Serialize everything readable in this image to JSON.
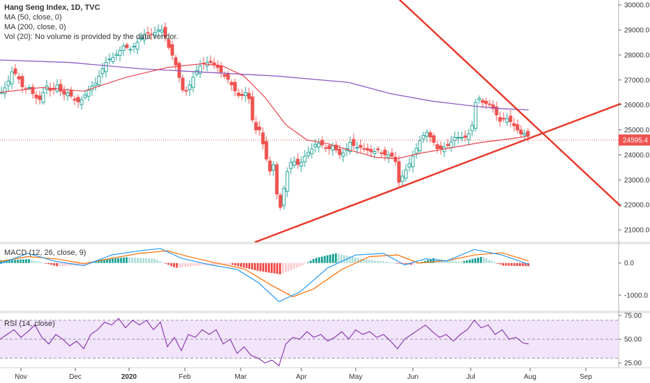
{
  "legend": {
    "title": "Hang Seng Index, 1D, TVC",
    "ma50": "MA (50, close, 0)",
    "ma200": "MA (200, close, 0)",
    "vol": "Vol (20): No volume is provided by the data vendor.",
    "macd": "MACD (12, 26, close, 9)",
    "rsi": "RSI (14, close)"
  },
  "colors": {
    "up": "#26a69a",
    "down": "#ef5350",
    "ma50": "#e8454f",
    "ma200": "#8e5bc4",
    "trendline": "#e8382b",
    "macd_line": "#2196f3",
    "signal_line": "#ff6d00",
    "rsi_line": "#7b1fa2",
    "rsi_band": "#f1e4fb",
    "price_tag": "#ef5350"
  },
  "chart_data": [
    {
      "type": "candlestick",
      "title": "Hang Seng Index, 1D, TVC",
      "ylim": [
        20500,
        30200
      ],
      "y_ticks": [
        "30000.0",
        "29000.0",
        "28000.0",
        "27000.0",
        "26000.0",
        "25000.0",
        "24000.0",
        "23000.0",
        "22000.0",
        "21000.0"
      ],
      "last_price": "24595.4",
      "x_ticks": [
        "Nov",
        "Dec",
        "2020",
        "Feb",
        "Mar",
        "Apr",
        "May",
        "Jun",
        "Jul",
        "Aug",
        "Sep"
      ],
      "close_path": [
        [
          0,
          26500
        ],
        [
          8,
          26800
        ],
        [
          16,
          27400
        ],
        [
          24,
          27100
        ],
        [
          32,
          26600
        ],
        [
          40,
          26700
        ],
        [
          48,
          26300
        ],
        [
          56,
          26200
        ],
        [
          64,
          26800
        ],
        [
          72,
          26500
        ],
        [
          80,
          26800
        ],
        [
          88,
          26400
        ],
        [
          96,
          26500
        ],
        [
          104,
          26200
        ],
        [
          112,
          26100
        ],
        [
          120,
          26400
        ],
        [
          128,
          26700
        ],
        [
          136,
          26900
        ],
        [
          144,
          27400
        ],
        [
          152,
          27800
        ],
        [
          160,
          27900
        ],
        [
          168,
          28100
        ],
        [
          176,
          28400
        ],
        [
          184,
          28200
        ],
        [
          192,
          28400
        ],
        [
          200,
          28700
        ],
        [
          208,
          28900
        ],
        [
          216,
          28800
        ],
        [
          224,
          29000
        ],
        [
          232,
          29000
        ],
        [
          240,
          28300
        ],
        [
          248,
          27800
        ],
        [
          256,
          27000
        ],
        [
          262,
          26400
        ],
        [
          270,
          26800
        ],
        [
          278,
          27300
        ],
        [
          286,
          27600
        ],
        [
          294,
          27700
        ],
        [
          302,
          27700
        ],
        [
          310,
          27500
        ],
        [
          318,
          27200
        ],
        [
          326,
          27000
        ],
        [
          334,
          26600
        ],
        [
          342,
          26300
        ],
        [
          350,
          26500
        ],
        [
          356,
          26200
        ],
        [
          362,
          25000
        ],
        [
          370,
          25000
        ],
        [
          378,
          24100
        ],
        [
          384,
          23300
        ],
        [
          390,
          23600
        ],
        [
          396,
          22200
        ],
        [
          400,
          21900
        ],
        [
          406,
          22800
        ],
        [
          412,
          23600
        ],
        [
          418,
          23800
        ],
        [
          424,
          23600
        ],
        [
          430,
          23700
        ],
        [
          436,
          24000
        ],
        [
          444,
          24200
        ],
        [
          452,
          24500
        ],
        [
          460,
          24400
        ],
        [
          468,
          24200
        ],
        [
          476,
          24400
        ],
        [
          484,
          24000
        ],
        [
          492,
          24100
        ],
        [
          500,
          24500
        ],
        [
          508,
          24300
        ],
        [
          516,
          24300
        ],
        [
          524,
          24200
        ],
        [
          532,
          24100
        ],
        [
          540,
          24200
        ],
        [
          548,
          24000
        ],
        [
          556,
          24000
        ],
        [
          564,
          23900
        ],
        [
          570,
          22900
        ],
        [
          578,
          23300
        ],
        [
          586,
          23700
        ],
        [
          594,
          24200
        ],
        [
          602,
          24700
        ],
        [
          610,
          24900
        ],
        [
          618,
          24600
        ],
        [
          626,
          24200
        ],
        [
          634,
          24300
        ],
        [
          642,
          24400
        ],
        [
          650,
          24700
        ],
        [
          658,
          24700
        ],
        [
          666,
          24700
        ],
        [
          674,
          25000
        ],
        [
          680,
          26100
        ],
        [
          686,
          26300
        ],
        [
          692,
          26000
        ],
        [
          698,
          26100
        ],
        [
          704,
          25900
        ],
        [
          710,
          25600
        ],
        [
          716,
          25300
        ],
        [
          722,
          25500
        ],
        [
          728,
          25400
        ],
        [
          734,
          25200
        ],
        [
          740,
          25000
        ],
        [
          746,
          24800
        ],
        [
          752,
          24900
        ],
        [
          758,
          24595
        ]
      ],
      "series": [
        {
          "name": "MA (50, close, 0)",
          "points": [
            [
              0,
              26500
            ],
            [
              60,
              26700
            ],
            [
              120,
              26550
            ],
            [
              180,
              27100
            ],
            [
              240,
              27500
            ],
            [
              290,
              27650
            ],
            [
              320,
              27550
            ],
            [
              350,
              27150
            ],
            [
              380,
              26300
            ],
            [
              410,
              25200
            ],
            [
              440,
              24600
            ],
            [
              470,
              24450
            ],
            [
              500,
              24200
            ],
            [
              540,
              23900
            ],
            [
              570,
              23850
            ],
            [
              600,
              24050
            ],
            [
              630,
              24200
            ],
            [
              660,
              24350
            ],
            [
              690,
              24500
            ],
            [
              720,
              24600
            ],
            [
              758,
              24750
            ]
          ]
        },
        {
          "name": "MA (200, close, 0)",
          "points": [
            [
              0,
              27800
            ],
            [
              100,
              27700
            ],
            [
              200,
              27450
            ],
            [
              300,
              27300
            ],
            [
              400,
              27150
            ],
            [
              500,
              26900
            ],
            [
              560,
              26450
            ],
            [
              620,
              26150
            ],
            [
              680,
              25950
            ],
            [
              720,
              25850
            ],
            [
              758,
              25800
            ]
          ]
        }
      ],
      "trendlines": [
        {
          "from": [
            535,
            31200
          ],
          "to": [
            890,
            21950
          ]
        },
        {
          "from": [
            365,
            20500
          ],
          "to": [
            890,
            26050
          ]
        }
      ]
    },
    {
      "type": "bar",
      "title": "MACD (12, 26, close, 9)",
      "ylim": [
        -1500,
        600
      ],
      "y_ticks": [
        "0.0",
        "-1000.0"
      ],
      "series": [
        {
          "name": "MACD",
          "points": [
            [
              0,
              -20
            ],
            [
              40,
              300
            ],
            [
              80,
              50
            ],
            [
              120,
              -80
            ],
            [
              160,
              250
            ],
            [
              200,
              380
            ],
            [
              230,
              450
            ],
            [
              260,
              150
            ],
            [
              300,
              -50
            ],
            [
              340,
              -200
            ],
            [
              370,
              -600
            ],
            [
              400,
              -1200
            ],
            [
              430,
              -900
            ],
            [
              470,
              -150
            ],
            [
              510,
              250
            ],
            [
              550,
              300
            ],
            [
              580,
              -60
            ],
            [
              610,
              130
            ],
            [
              640,
              60
            ],
            [
              680,
              420
            ],
            [
              720,
              250
            ],
            [
              758,
              -40
            ]
          ]
        },
        {
          "name": "Signal",
          "points": [
            [
              0,
              50
            ],
            [
              40,
              200
            ],
            [
              80,
              130
            ],
            [
              120,
              -20
            ],
            [
              160,
              150
            ],
            [
              200,
              300
            ],
            [
              240,
              380
            ],
            [
              270,
              200
            ],
            [
              310,
              0
            ],
            [
              350,
              -180
            ],
            [
              390,
              -700
            ],
            [
              420,
              -1050
            ],
            [
              450,
              -800
            ],
            [
              490,
              -200
            ],
            [
              530,
              200
            ],
            [
              570,
              250
            ],
            [
              600,
              0
            ],
            [
              640,
              70
            ],
            [
              680,
              250
            ],
            [
              720,
              320
            ],
            [
              758,
              60
            ]
          ]
        }
      ],
      "histogram": [
        [
          0,
          80
        ],
        [
          40,
          120
        ],
        [
          80,
          -100
        ],
        [
          120,
          -70
        ],
        [
          140,
          100
        ],
        [
          180,
          180
        ],
        [
          220,
          130
        ],
        [
          250,
          -150
        ],
        [
          290,
          -60
        ],
        [
          330,
          -50
        ],
        [
          370,
          -250
        ],
        [
          400,
          -350
        ],
        [
          430,
          -100
        ],
        [
          450,
          150
        ],
        [
          480,
          300
        ],
        [
          520,
          120
        ],
        [
          560,
          20
        ],
        [
          590,
          -60
        ],
        [
          620,
          150
        ],
        [
          660,
          40
        ],
        [
          690,
          200
        ],
        [
          720,
          -80
        ],
        [
          758,
          -100
        ]
      ]
    },
    {
      "type": "line",
      "title": "RSI (14, close)",
      "ylim": [
        20,
        78
      ],
      "y_ticks": [
        "75.00",
        "50.00",
        "25.00"
      ],
      "band": [
        30,
        70
      ],
      "points": [
        [
          0,
          50
        ],
        [
          10,
          55
        ],
        [
          20,
          60
        ],
        [
          30,
          52
        ],
        [
          40,
          58
        ],
        [
          50,
          65
        ],
        [
          60,
          52
        ],
        [
          70,
          45
        ],
        [
          80,
          55
        ],
        [
          90,
          50
        ],
        [
          100,
          43
        ],
        [
          110,
          48
        ],
        [
          120,
          40
        ],
        [
          130,
          55
        ],
        [
          140,
          60
        ],
        [
          150,
          68
        ],
        [
          160,
          65
        ],
        [
          170,
          72
        ],
        [
          180,
          62
        ],
        [
          190,
          70
        ],
        [
          200,
          65
        ],
        [
          210,
          70
        ],
        [
          220,
          60
        ],
        [
          230,
          68
        ],
        [
          240,
          42
        ],
        [
          250,
          52
        ],
        [
          260,
          38
        ],
        [
          270,
          55
        ],
        [
          280,
          52
        ],
        [
          290,
          60
        ],
        [
          300,
          55
        ],
        [
          310,
          60
        ],
        [
          320,
          45
        ],
        [
          330,
          50
        ],
        [
          340,
          35
        ],
        [
          350,
          42
        ],
        [
          360,
          33
        ],
        [
          370,
          30
        ],
        [
          380,
          25
        ],
        [
          390,
          28
        ],
        [
          400,
          22
        ],
        [
          410,
          45
        ],
        [
          420,
          52
        ],
        [
          430,
          50
        ],
        [
          440,
          58
        ],
        [
          450,
          52
        ],
        [
          460,
          55
        ],
        [
          470,
          48
        ],
        [
          480,
          52
        ],
        [
          490,
          58
        ],
        [
          500,
          50
        ],
        [
          510,
          60
        ],
        [
          520,
          55
        ],
        [
          530,
          58
        ],
        [
          540,
          52
        ],
        [
          550,
          55
        ],
        [
          560,
          48
        ],
        [
          570,
          40
        ],
        [
          580,
          50
        ],
        [
          590,
          55
        ],
        [
          600,
          60
        ],
        [
          610,
          65
        ],
        [
          620,
          58
        ],
        [
          630,
          52
        ],
        [
          640,
          55
        ],
        [
          650,
          48
        ],
        [
          660,
          55
        ],
        [
          670,
          60
        ],
        [
          680,
          70
        ],
        [
          690,
          62
        ],
        [
          700,
          65
        ],
        [
          710,
          55
        ],
        [
          720,
          60
        ],
        [
          730,
          50
        ],
        [
          740,
          52
        ],
        [
          750,
          46
        ],
        [
          758,
          45
        ]
      ]
    }
  ]
}
